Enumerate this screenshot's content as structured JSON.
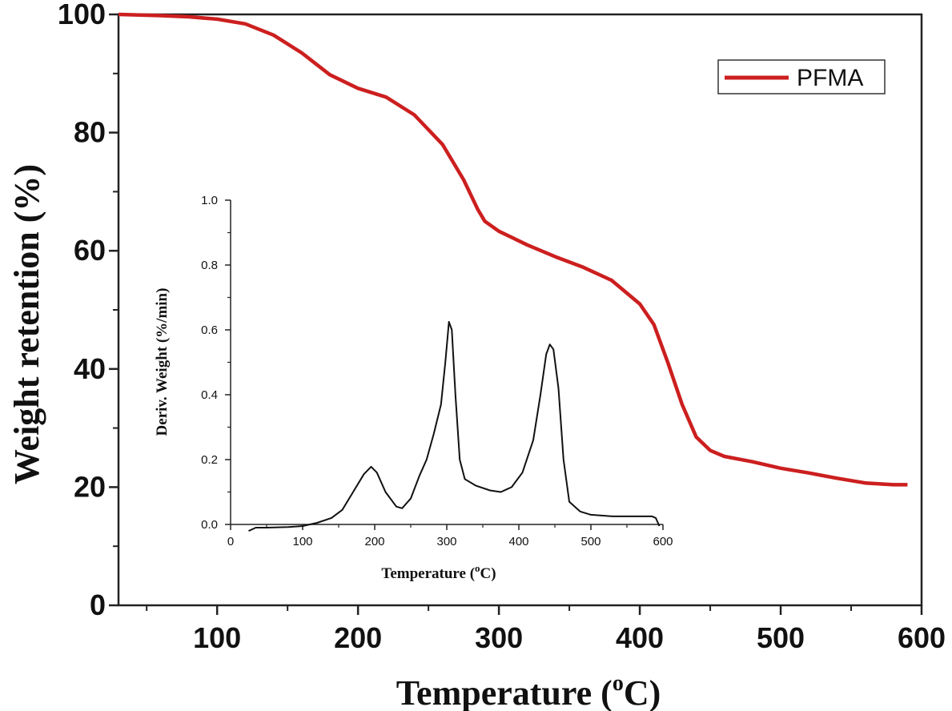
{
  "chart_data": [
    {
      "type": "line",
      "title": "",
      "xlabel": "Temperature (",
      "xlabel_sup": "o",
      "xlabel_end": "C)",
      "ylabel": "Weight retention (%)",
      "xlim": [
        30,
        600
      ],
      "ylim": [
        0,
        100
      ],
      "x_ticks": [
        100,
        200,
        300,
        400,
        500,
        600
      ],
      "y_ticks": [
        0,
        20,
        40,
        60,
        80,
        100
      ],
      "legend": {
        "position": "top-right",
        "entries": [
          "PFMA"
        ]
      },
      "grid": false,
      "series": [
        {
          "name": "PFMA",
          "color": "#cc1f1f",
          "points": [
            [
              30,
              100
            ],
            [
              60,
              99.8
            ],
            [
              80,
              99.6
            ],
            [
              100,
              99.2
            ],
            [
              120,
              98.4
            ],
            [
              140,
              96.5
            ],
            [
              160,
              93.5
            ],
            [
              180,
              89.8
            ],
            [
              200,
              87.5
            ],
            [
              220,
              86
            ],
            [
              240,
              83
            ],
            [
              260,
              78
            ],
            [
              275,
              72
            ],
            [
              285,
              67
            ],
            [
              290,
              65
            ],
            [
              300,
              63.3
            ],
            [
              320,
              61
            ],
            [
              340,
              59
            ],
            [
              360,
              57.2
            ],
            [
              380,
              55
            ],
            [
              400,
              51
            ],
            [
              410,
              47.5
            ],
            [
              420,
              41
            ],
            [
              430,
              34
            ],
            [
              440,
              28.5
            ],
            [
              450,
              26.2
            ],
            [
              460,
              25.2
            ],
            [
              480,
              24.3
            ],
            [
              500,
              23.2
            ],
            [
              520,
              22.4
            ],
            [
              540,
              21.5
            ],
            [
              560,
              20.7
            ],
            [
              580,
              20.4
            ],
            [
              590,
              20.4
            ]
          ]
        }
      ]
    },
    {
      "type": "line",
      "title": "",
      "xlabel": "Temperature (",
      "xlabel_sup": "o",
      "xlabel_end": "C)",
      "ylabel": "Deriv. Weight (%/min)",
      "xlim": [
        0,
        600
      ],
      "ylim": [
        0,
        1.0
      ],
      "x_ticks": [
        0,
        100,
        200,
        300,
        400,
        500,
        600
      ],
      "y_ticks": [
        "0.0",
        "0.2",
        "0.4",
        "0.6",
        "0.8",
        "1.0"
      ],
      "grid": false,
      "series": [
        {
          "color": "#111111",
          "points": [
            [
              25,
              -0.02
            ],
            [
              35,
              -0.01
            ],
            [
              50,
              -0.01
            ],
            [
              80,
              -0.008
            ],
            [
              100,
              -0.005
            ],
            [
              120,
              0.005
            ],
            [
              140,
              0.02
            ],
            [
              155,
              0.045
            ],
            [
              170,
              0.1
            ],
            [
              185,
              0.155
            ],
            [
              195,
              0.178
            ],
            [
              203,
              0.16
            ],
            [
              215,
              0.1
            ],
            [
              230,
              0.055
            ],
            [
              238,
              0.05
            ],
            [
              250,
              0.08
            ],
            [
              262,
              0.15
            ],
            [
              272,
              0.2
            ],
            [
              282,
              0.28
            ],
            [
              292,
              0.37
            ],
            [
              298,
              0.5
            ],
            [
              303,
              0.625
            ],
            [
              307,
              0.6
            ],
            [
              312,
              0.4
            ],
            [
              318,
              0.2
            ],
            [
              325,
              0.14
            ],
            [
              340,
              0.12
            ],
            [
              360,
              0.105
            ],
            [
              375,
              0.1
            ],
            [
              390,
              0.115
            ],
            [
              405,
              0.16
            ],
            [
              420,
              0.26
            ],
            [
              430,
              0.4
            ],
            [
              438,
              0.525
            ],
            [
              443,
              0.555
            ],
            [
              448,
              0.54
            ],
            [
              455,
              0.42
            ],
            [
              462,
              0.2
            ],
            [
              470,
              0.07
            ],
            [
              485,
              0.04
            ],
            [
              500,
              0.03
            ],
            [
              530,
              0.025
            ],
            [
              560,
              0.025
            ],
            [
              585,
              0.025
            ],
            [
              590,
              0.02
            ],
            [
              595,
              -0.005
            ]
          ]
        }
      ]
    }
  ]
}
